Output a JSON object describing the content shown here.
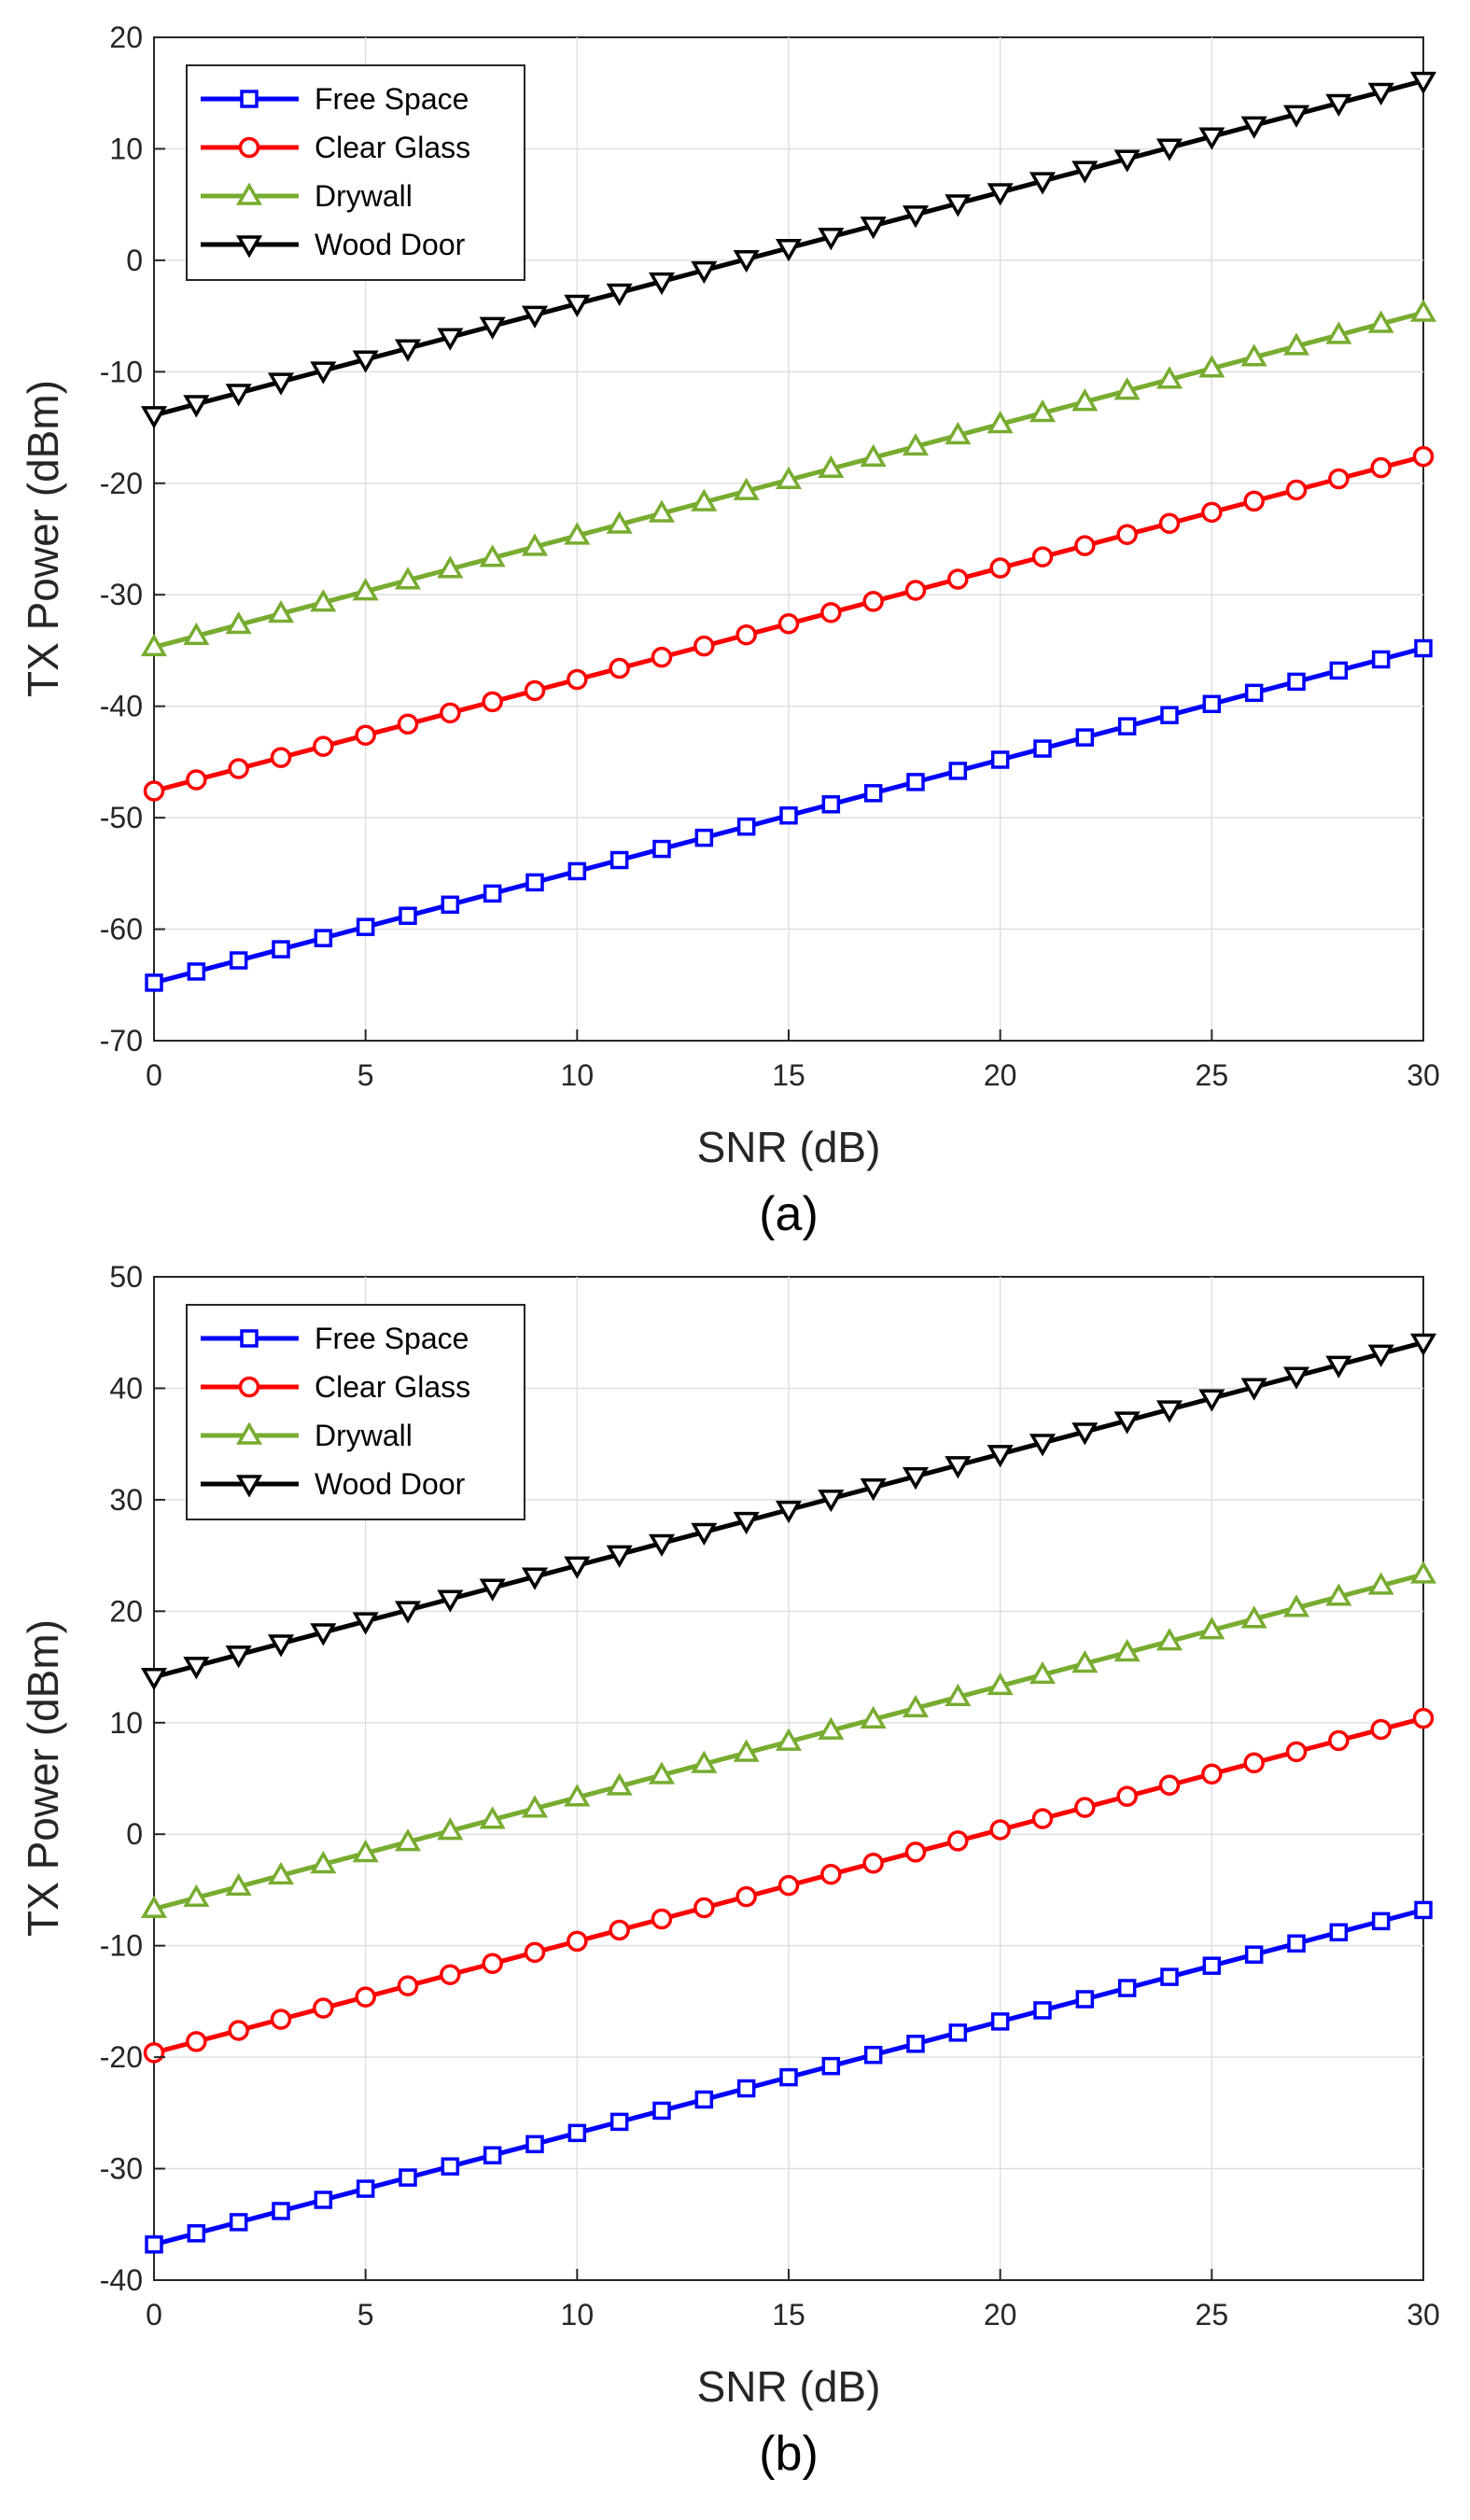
{
  "chart_data": [
    {
      "type": "line",
      "panel_label": "(a)",
      "title": "",
      "xlabel": "SNR (dB)",
      "ylabel": "TX Power (dBm)",
      "xlim": [
        0,
        30
      ],
      "ylim": [
        -70,
        20
      ],
      "xticks": [
        0,
        5,
        10,
        15,
        20,
        25,
        30
      ],
      "yticks": [
        -70,
        -60,
        -50,
        -40,
        -30,
        -20,
        -10,
        0,
        10,
        20
      ],
      "grid": true,
      "legend_position": "top-left",
      "x": [
        0,
        1,
        2,
        3,
        4,
        5,
        6,
        7,
        8,
        9,
        10,
        11,
        12,
        13,
        14,
        15,
        16,
        17,
        18,
        19,
        20,
        21,
        22,
        23,
        24,
        25,
        26,
        27,
        28,
        29,
        30
      ],
      "series": [
        {
          "name": "Free Space",
          "color": "#0000ff",
          "marker": "square",
          "start": -64.8,
          "slope": 1,
          "end": -34.8
        },
        {
          "name": "Clear Glass",
          "color": "#ff0000",
          "marker": "circle",
          "start": -47.6,
          "slope": 1,
          "end": -17.6
        },
        {
          "name": "Drywall",
          "color": "#77ac30",
          "marker": "triangle-up",
          "start": -34.7,
          "slope": 1,
          "end": -4.7
        },
        {
          "name": "Wood Door",
          "color": "#000000",
          "marker": "triangle-down",
          "start": -13.9,
          "slope": 1,
          "end": 16.1
        }
      ]
    },
    {
      "type": "line",
      "panel_label": "(b)",
      "title": "",
      "xlabel": "SNR (dB)",
      "ylabel": "TX Power (dBm)",
      "xlim": [
        0,
        30
      ],
      "ylim": [
        -40,
        50
      ],
      "xticks": [
        0,
        5,
        10,
        15,
        20,
        25,
        30
      ],
      "yticks": [
        -40,
        -30,
        -20,
        -10,
        0,
        10,
        20,
        30,
        40,
        50
      ],
      "grid": true,
      "legend_position": "top-left",
      "x": [
        0,
        1,
        2,
        3,
        4,
        5,
        6,
        7,
        8,
        9,
        10,
        11,
        12,
        13,
        14,
        15,
        16,
        17,
        18,
        19,
        20,
        21,
        22,
        23,
        24,
        25,
        26,
        27,
        28,
        29,
        30
      ],
      "series": [
        {
          "name": "Free Space",
          "color": "#0000ff",
          "marker": "square",
          "start": -36.8,
          "slope": 1,
          "end": -6.8
        },
        {
          "name": "Clear Glass",
          "color": "#ff0000",
          "marker": "circle",
          "start": -19.6,
          "slope": 1,
          "end": 10.4
        },
        {
          "name": "Drywall",
          "color": "#77ac30",
          "marker": "triangle-up",
          "start": -6.7,
          "slope": 1,
          "end": 23.3
        },
        {
          "name": "Wood Door",
          "color": "#000000",
          "marker": "triangle-down",
          "start": 14.1,
          "slope": 1,
          "end": 44.1
        }
      ]
    }
  ]
}
